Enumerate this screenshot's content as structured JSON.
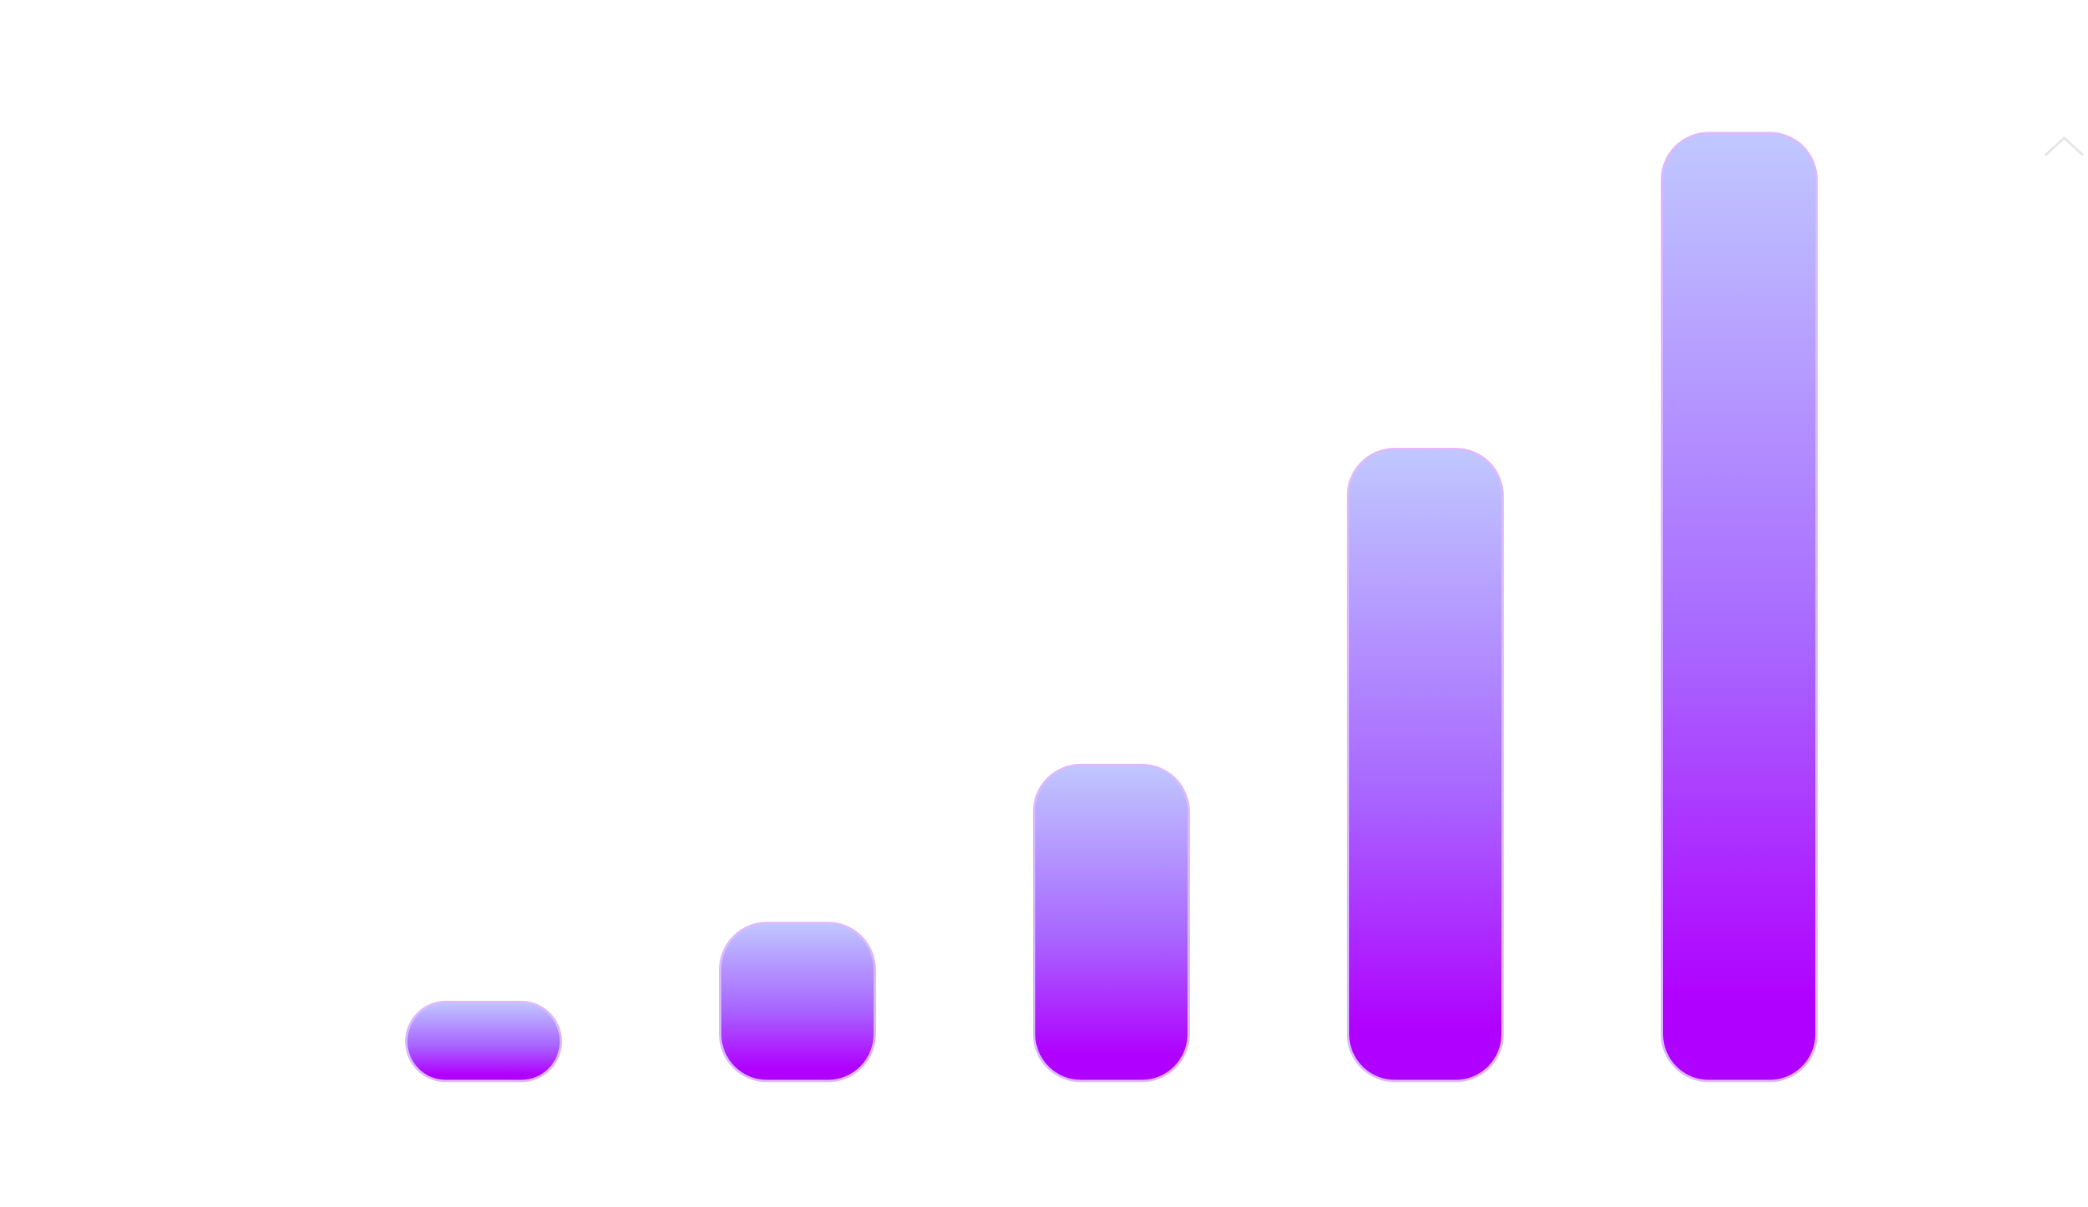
{
  "chart_data": {
    "type": "bar",
    "values": [
      5,
      10,
      20,
      40,
      60
    ],
    "ylim": [
      0,
      60
    ],
    "color": "#b000ff",
    "color_top": "#c0c8ff"
  }
}
